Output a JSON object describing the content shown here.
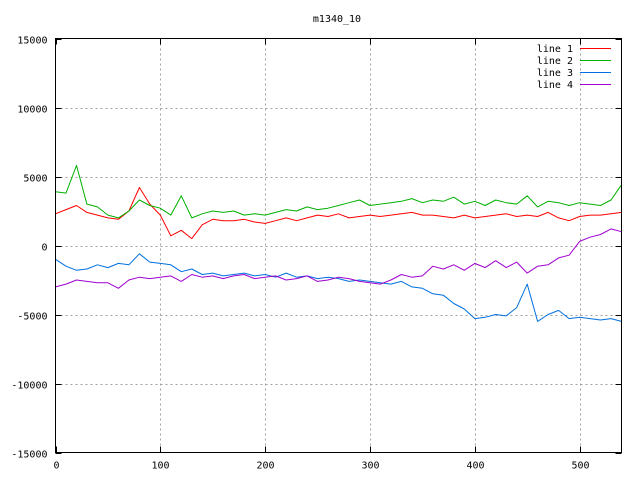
{
  "chart_data": {
    "type": "line",
    "title": "m1340_10",
    "xlabel": "",
    "ylabel": "",
    "xlim": [
      0,
      540
    ],
    "ylim": [
      -15000,
      15000
    ],
    "xticks": [
      0,
      100,
      200,
      300,
      400,
      500
    ],
    "yticks": [
      -15000,
      -10000,
      -5000,
      0,
      5000,
      10000,
      15000
    ],
    "grid": true,
    "legend_position": "top-right",
    "series": [
      {
        "name": "line 1",
        "color": "#ff0000",
        "x": [
          0,
          10,
          20,
          30,
          40,
          50,
          60,
          70,
          80,
          90,
          100,
          110,
          120,
          130,
          140,
          150,
          160,
          170,
          180,
          190,
          200,
          210,
          220,
          230,
          240,
          250,
          260,
          270,
          280,
          290,
          300,
          310,
          320,
          330,
          340,
          350,
          360,
          370,
          380,
          390,
          400,
          410,
          420,
          430,
          440,
          450,
          460,
          470,
          480,
          490,
          500,
          510,
          520,
          530,
          540
        ],
        "y": [
          2300,
          2600,
          2900,
          2400,
          2200,
          2000,
          1900,
          2500,
          4200,
          3000,
          2200,
          700,
          1100,
          500,
          1500,
          1900,
          1800,
          1800,
          1900,
          1700,
          1600,
          1800,
          2000,
          1800,
          2000,
          2200,
          2100,
          2300,
          2000,
          2100,
          2200,
          2100,
          2200,
          2300,
          2400,
          2200,
          2200,
          2100,
          2000,
          2200,
          2000,
          2100,
          2200,
          2300,
          2100,
          2200,
          2100,
          2400,
          2000,
          1800,
          2100,
          2200,
          2200,
          2300,
          2400
        ]
      },
      {
        "name": "line 2",
        "color": "#00b000",
        "x": [
          0,
          10,
          20,
          30,
          40,
          50,
          60,
          70,
          80,
          90,
          100,
          110,
          120,
          130,
          140,
          150,
          160,
          170,
          180,
          190,
          200,
          210,
          220,
          230,
          240,
          250,
          260,
          270,
          280,
          290,
          300,
          310,
          320,
          330,
          340,
          350,
          360,
          370,
          380,
          390,
          400,
          410,
          420,
          430,
          440,
          450,
          460,
          470,
          480,
          490,
          500,
          510,
          520,
          530,
          540
        ],
        "y": [
          3900,
          3800,
          5800,
          3000,
          2800,
          2200,
          2000,
          2500,
          3300,
          2900,
          2700,
          2200,
          3600,
          2000,
          2300,
          2500,
          2400,
          2500,
          2200,
          2300,
          2200,
          2400,
          2600,
          2500,
          2800,
          2600,
          2700,
          2900,
          3100,
          3300,
          2900,
          3000,
          3100,
          3200,
          3400,
          3100,
          3300,
          3200,
          3500,
          3000,
          3200,
          2900,
          3300,
          3100,
          3000,
          3600,
          2800,
          3200,
          3100,
          2900,
          3100,
          3000,
          2900,
          3300,
          4400
        ]
      },
      {
        "name": "line 3",
        "color": "#0070e0",
        "x": [
          0,
          10,
          20,
          30,
          40,
          50,
          60,
          70,
          80,
          90,
          100,
          110,
          120,
          130,
          140,
          150,
          160,
          170,
          180,
          190,
          200,
          210,
          220,
          230,
          240,
          250,
          260,
          270,
          280,
          290,
          300,
          310,
          320,
          330,
          340,
          350,
          360,
          370,
          380,
          390,
          400,
          410,
          420,
          430,
          440,
          450,
          460,
          470,
          480,
          490,
          500,
          510,
          520,
          530,
          540
        ],
        "y": [
          -1000,
          -1500,
          -1800,
          -1700,
          -1400,
          -1600,
          -1300,
          -1400,
          -600,
          -1200,
          -1300,
          -1400,
          -1900,
          -1700,
          -2100,
          -2000,
          -2200,
          -2100,
          -2000,
          -2200,
          -2100,
          -2300,
          -2000,
          -2300,
          -2200,
          -2400,
          -2300,
          -2400,
          -2600,
          -2500,
          -2600,
          -2700,
          -2800,
          -2600,
          -3000,
          -3100,
          -3500,
          -3600,
          -4200,
          -4600,
          -5300,
          -5200,
          -5000,
          -5100,
          -4500,
          -2800,
          -5500,
          -5000,
          -4700,
          -5300,
          -5200,
          -5300,
          -5400,
          -5300,
          -5500
        ]
      },
      {
        "name": "line 4",
        "color": "#a000d0",
        "x": [
          0,
          10,
          20,
          30,
          40,
          50,
          60,
          70,
          80,
          90,
          100,
          110,
          120,
          130,
          140,
          150,
          160,
          170,
          180,
          190,
          200,
          210,
          220,
          230,
          240,
          250,
          260,
          270,
          280,
          290,
          300,
          310,
          320,
          330,
          340,
          350,
          360,
          370,
          380,
          390,
          400,
          410,
          420,
          430,
          440,
          450,
          460,
          470,
          480,
          490,
          500,
          510,
          520,
          530,
          540
        ],
        "y": [
          -3000,
          -2800,
          -2500,
          -2600,
          -2700,
          -2700,
          -3100,
          -2500,
          -2300,
          -2400,
          -2300,
          -2200,
          -2600,
          -2100,
          -2300,
          -2200,
          -2400,
          -2200,
          -2100,
          -2400,
          -2300,
          -2200,
          -2500,
          -2400,
          -2200,
          -2600,
          -2500,
          -2300,
          -2400,
          -2600,
          -2700,
          -2800,
          -2500,
          -2100,
          -2300,
          -2200,
          -1500,
          -1700,
          -1400,
          -1800,
          -1300,
          -1600,
          -1100,
          -1600,
          -1200,
          -2000,
          -1500,
          -1400,
          -900,
          -700,
          300,
          600,
          800,
          1200,
          1000
        ]
      }
    ]
  }
}
